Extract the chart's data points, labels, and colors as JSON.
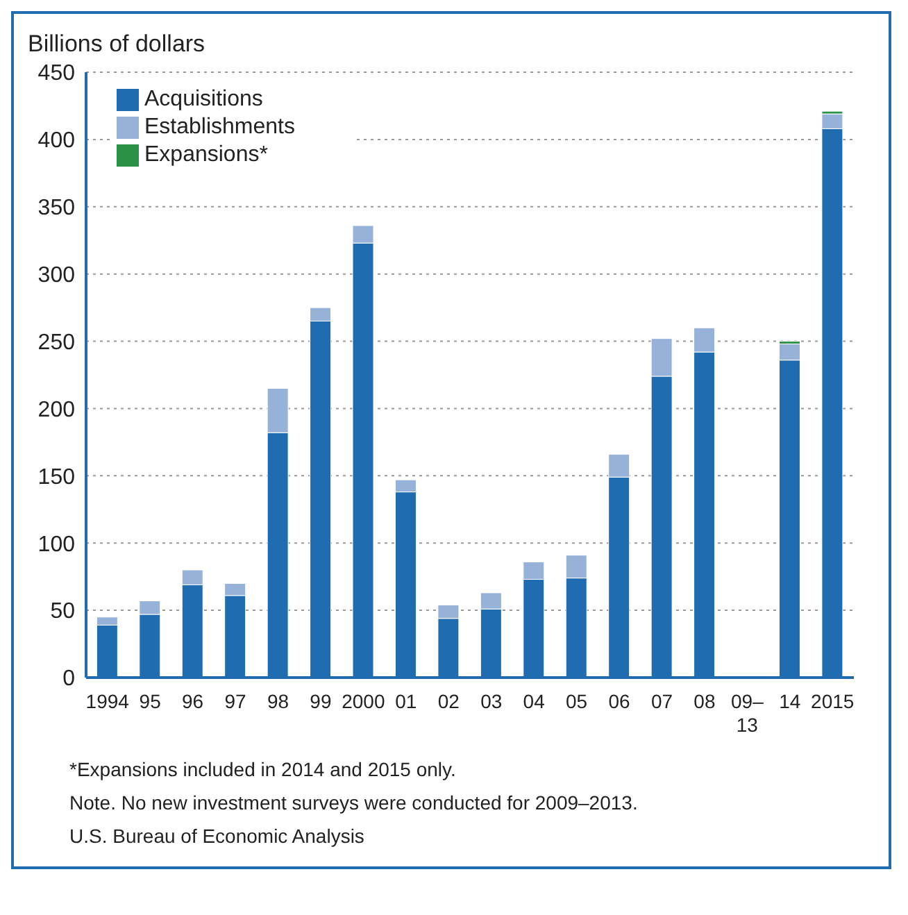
{
  "chart_data": {
    "type": "bar",
    "stacked": true,
    "ylabel": "Billions of dollars",
    "categories": [
      "1994",
      "95",
      "96",
      "97",
      "98",
      "99",
      "2000",
      "01",
      "02",
      "03",
      "04",
      "05",
      "06",
      "07",
      "08",
      "09–13",
      "14",
      "2015"
    ],
    "series": [
      {
        "name": "Acquisitions",
        "color": "#1f6db0",
        "values": [
          39,
          47,
          69,
          61,
          182,
          265,
          323,
          138,
          44,
          51,
          73,
          74,
          149,
          224,
          242,
          null,
          236,
          408
        ]
      },
      {
        "name": "Establishments",
        "color": "#97b2d8",
        "values": [
          6,
          10,
          11,
          9,
          33,
          10,
          13,
          9,
          10,
          12,
          13,
          17,
          17,
          28,
          18,
          null,
          12,
          11
        ]
      },
      {
        "name": "Expansions*",
        "color": "#2a9147",
        "values": [
          null,
          null,
          null,
          null,
          null,
          null,
          null,
          null,
          null,
          null,
          null,
          null,
          null,
          null,
          null,
          null,
          2,
          2
        ]
      }
    ],
    "ylim": [
      0,
      450
    ],
    "yticks": [
      0,
      50,
      100,
      150,
      200,
      250,
      300,
      350,
      400,
      450
    ],
    "grid": "y",
    "legend": "top left",
    "annotations": [
      "*Expansions included in 2014 and 2015 only.",
      "Note.  No new investment surveys were conducted for 2009–2013.",
      "U.S. Bureau of Economic Analysis"
    ]
  }
}
